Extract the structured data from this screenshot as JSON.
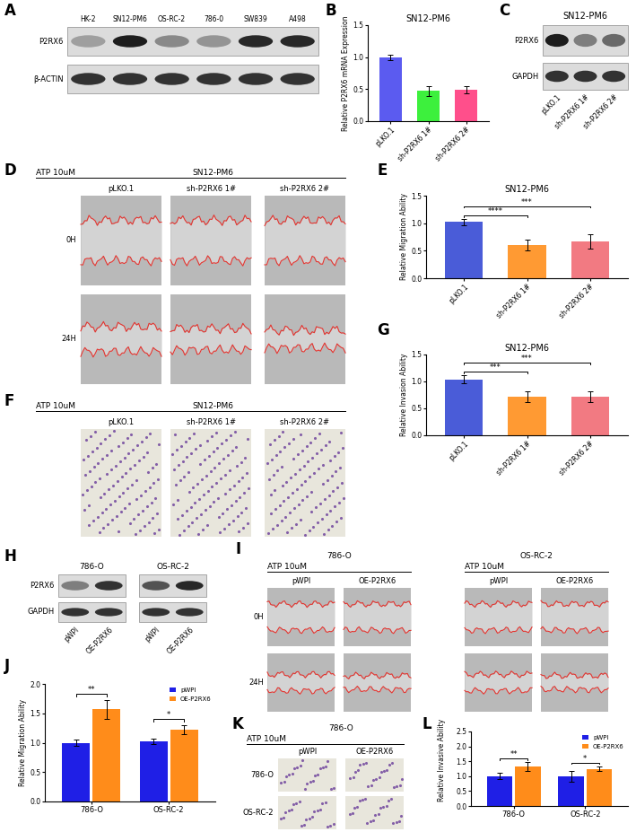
{
  "chart_data": [
    {
      "panel": "B",
      "type": "bar",
      "title": "SN12-PM6",
      "y_label": "Relative P2RX6 mRNA Expression",
      "categories": [
        "pLKO.1",
        "sh-P2RX6 1#",
        "sh-P2RX6 2#"
      ],
      "values": [
        1.0,
        0.47,
        0.49
      ],
      "errors": [
        0.04,
        0.08,
        0.05
      ],
      "colors": [
        "#5b5bf0",
        "#3df03d",
        "#ff4f8b"
      ],
      "ylim": [
        0,
        1.5
      ],
      "yticks": [
        {
          "value": 0,
          "label": "0.0"
        },
        {
          "value": 0.5,
          "label": "0.5"
        },
        {
          "value": 1.0,
          "label": "1.0"
        },
        {
          "value": 1.5,
          "label": "1.5"
        }
      ]
    },
    {
      "panel": "E",
      "type": "bar",
      "title": "SN12-PM6",
      "y_label": "Relative Migration Ability",
      "categories": [
        "pLKO.1",
        "sh-P2RX6 1#",
        "sh-P2RX6 2#"
      ],
      "values": [
        1.02,
        0.6,
        0.67
      ],
      "errors": [
        0.05,
        0.1,
        0.13
      ],
      "colors": [
        "#4a5cd8",
        "#ff9a33",
        "#f27a82"
      ],
      "ylim": [
        0,
        1.5
      ],
      "yticks": [
        {
          "value": 0,
          "label": "0.0"
        },
        {
          "value": 0.5,
          "label": "0.5"
        },
        {
          "value": 1.0,
          "label": "1.0"
        },
        {
          "value": 1.5,
          "label": "1.5"
        }
      ],
      "significance": [
        {
          "from": 0,
          "to": 1,
          "text": "****"
        },
        {
          "from": 0,
          "to": 2,
          "text": "***"
        }
      ]
    },
    {
      "panel": "G",
      "type": "bar",
      "title": "SN12-PM6",
      "y_label": "Relative Invasion Ability",
      "categories": [
        "pLKO.1",
        "sh-P2RX6 1#",
        "sh-P2RX6 2#"
      ],
      "values": [
        1.04,
        0.71,
        0.72
      ],
      "errors": [
        0.07,
        0.1,
        0.1
      ],
      "colors": [
        "#4a5cd8",
        "#ff9a33",
        "#f27a82"
      ],
      "ylim": [
        0,
        1.5
      ],
      "yticks": [
        {
          "value": 0,
          "label": "0.0"
        },
        {
          "value": 0.5,
          "label": "0.5"
        },
        {
          "value": 1.0,
          "label": "1.0"
        },
        {
          "value": 1.5,
          "label": "1.5"
        }
      ],
      "significance": [
        {
          "from": 0,
          "to": 1,
          "text": "***"
        },
        {
          "from": 0,
          "to": 2,
          "text": "***"
        }
      ]
    },
    {
      "panel": "J",
      "type": "bar",
      "y_label": "Relative Migration Ability",
      "categories": [
        "786-O",
        "OS-RC-2"
      ],
      "series": [
        {
          "name": "pWPI",
          "color": "#1f1fe6",
          "values": [
            1.0,
            1.02
          ],
          "errors": [
            0.06,
            0.05
          ]
        },
        {
          "name": "OE-P2RX6",
          "color": "#ff8c1a",
          "values": [
            1.57,
            1.22
          ],
          "errors": [
            0.16,
            0.08
          ]
        }
      ],
      "ylim": [
        0,
        2.0
      ],
      "yticks": [
        {
          "value": 0,
          "label": "0.0"
        },
        {
          "value": 0.5,
          "label": "0.5"
        },
        {
          "value": 1.0,
          "label": "1.0"
        },
        {
          "value": 1.5,
          "label": "1.5"
        },
        {
          "value": 2.0,
          "label": "2.0"
        }
      ],
      "legend": "upper right",
      "significance": [
        {
          "category": 0,
          "text": "**"
        },
        {
          "category": 1,
          "text": "*"
        }
      ]
    },
    {
      "panel": "L",
      "type": "bar",
      "y_label": "Relative Invasive Ability",
      "categories": [
        "786-O",
        "OS-RC-2"
      ],
      "series": [
        {
          "name": "pWPI",
          "color": "#1f1fe6",
          "values": [
            1.0,
            0.98
          ],
          "errors": [
            0.1,
            0.18
          ]
        },
        {
          "name": "OE-P2RX6",
          "color": "#ff8c1a",
          "values": [
            1.32,
            1.25
          ],
          "errors": [
            0.15,
            0.08
          ]
        }
      ],
      "ylim": [
        0,
        2.5
      ],
      "yticks": [
        {
          "value": 0,
          "label": "0.0"
        },
        {
          "value": 0.5,
          "label": "0.5"
        },
        {
          "value": 1.0,
          "label": "1.0"
        },
        {
          "value": 1.5,
          "label": "1.5"
        },
        {
          "value": 2.0,
          "label": "2.0"
        },
        {
          "value": 2.5,
          "label": "2.5"
        }
      ],
      "legend": "upper right",
      "significance": [
        {
          "category": 0,
          "text": "**"
        },
        {
          "category": 1,
          "text": "*"
        }
      ]
    }
  ],
  "blots": [
    {
      "panel": "A",
      "groups": [
        {
          "lanes": [
            "HK-2",
            "SN12-PM6",
            "OS-RC-2",
            "786-0",
            "SW839",
            "A498"
          ],
          "rows": [
            {
              "name": "P2RX6",
              "intensity": [
                0.35,
                0.95,
                0.45,
                0.4,
                0.9,
                0.9
              ]
            },
            {
              "name": "β-ACTIN",
              "intensity": [
                0.85,
                0.85,
                0.85,
                0.85,
                0.85,
                0.85
              ]
            }
          ]
        }
      ]
    },
    {
      "panel": "C",
      "title": "SN12-PM6",
      "groups": [
        {
          "lanes": [
            "pLKO.1",
            "sh-P2RX6 1#",
            "sh-P2RX6 2#"
          ],
          "rows": [
            {
              "name": "P2RX6",
              "intensity": [
                0.95,
                0.5,
                0.6
              ]
            },
            {
              "name": "GAPDH",
              "intensity": [
                0.85,
                0.85,
                0.85
              ]
            }
          ]
        }
      ]
    },
    {
      "panel": "H",
      "groups": [
        {
          "title": "786-O",
          "lanes": [
            "pWPI",
            "OE-P2RX6"
          ],
          "rows": [
            {
              "name": "P2RX6",
              "intensity": [
                0.5,
                0.85
              ]
            },
            {
              "name": "GAPDH",
              "intensity": [
                0.85,
                0.85
              ]
            }
          ]
        },
        {
          "title": "OS-RC-2",
          "lanes": [
            "pWPI",
            "OE-P2RX6"
          ],
          "rows": [
            {
              "name": "P2RX6",
              "intensity": [
                0.7,
                0.9
              ]
            },
            {
              "name": "GAPDH",
              "intensity": [
                0.85,
                0.85
              ]
            }
          ]
        }
      ]
    }
  ],
  "images": [
    {
      "panel": "D",
      "type": "wound",
      "treatment": "ATP 10uM",
      "title": "SN12-PM6",
      "columns": [
        "pLKO.1",
        "sh-P2RX6 1#",
        "sh-P2RX6 2#"
      ],
      "rows": [
        "0H",
        "24H"
      ]
    },
    {
      "panel": "F",
      "type": "transwell",
      "treatment": "ATP 10uM",
      "title": "SN12-PM6",
      "columns": [
        "pLKO.1",
        "sh-P2RX6 1#",
        "sh-P2RX6 2#"
      ]
    },
    {
      "panel": "I",
      "type": "wound",
      "rows": [
        "0H",
        "24H"
      ],
      "groups": [
        {
          "title": "786-O",
          "treatment": "ATP 10uM",
          "columns": [
            "pWPI",
            "OE-P2RX6"
          ]
        },
        {
          "title": "OS-RC-2",
          "treatment": "ATP 10uM",
          "columns": [
            "pWPI",
            "OE-P2RX6"
          ]
        }
      ]
    },
    {
      "panel": "K",
      "type": "transwell",
      "treatment": "ATP 10uM",
      "title": "786-O",
      "columns": [
        "pWPI",
        "OE-P2RX6"
      ],
      "rows": [
        "786-O",
        "OS-RC-2"
      ]
    }
  ]
}
